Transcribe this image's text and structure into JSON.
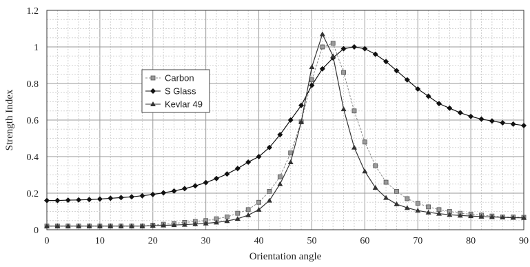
{
  "chart_data": {
    "type": "line",
    "title": "",
    "xlabel": "Orientation angle",
    "ylabel": "Strength Index",
    "xlim": [
      0,
      90
    ],
    "ylim": [
      0,
      1.2
    ],
    "xticks": [
      "0",
      "10",
      "20",
      "30",
      "40",
      "50",
      "60",
      "70",
      "80",
      "90"
    ],
    "yticks": [
      "0",
      "0.2",
      "0.4",
      "0.6",
      "0.8",
      "1",
      "1.2"
    ],
    "grid": true,
    "legend_position": "left-center",
    "series": [
      {
        "name": "Carbon",
        "marker": "square",
        "color": "#888888",
        "x": [
          0,
          2,
          4,
          6,
          8,
          10,
          12,
          14,
          16,
          18,
          20,
          22,
          24,
          26,
          28,
          30,
          32,
          34,
          36,
          38,
          40,
          42,
          44,
          46,
          48,
          50,
          52,
          54,
          56,
          58,
          60,
          62,
          64,
          66,
          68,
          70,
          72,
          74,
          76,
          78,
          80,
          82,
          84,
          86,
          88,
          90
        ],
        "y": [
          0.02,
          0.02,
          0.02,
          0.02,
          0.02,
          0.02,
          0.02,
          0.02,
          0.02,
          0.02,
          0.025,
          0.03,
          0.035,
          0.04,
          0.045,
          0.05,
          0.06,
          0.07,
          0.09,
          0.11,
          0.15,
          0.21,
          0.29,
          0.42,
          0.59,
          0.82,
          1.0,
          1.02,
          0.86,
          0.65,
          0.48,
          0.35,
          0.26,
          0.21,
          0.17,
          0.145,
          0.125,
          0.11,
          0.1,
          0.09,
          0.085,
          0.08,
          0.075,
          0.07,
          0.07,
          0.068
        ]
      },
      {
        "name": "S Glass",
        "marker": "diamond",
        "color": "#111111",
        "x": [
          0,
          2,
          4,
          6,
          8,
          10,
          12,
          14,
          16,
          18,
          20,
          22,
          24,
          26,
          28,
          30,
          32,
          34,
          36,
          38,
          40,
          42,
          44,
          46,
          48,
          50,
          52,
          54,
          56,
          58,
          60,
          62,
          64,
          66,
          68,
          70,
          72,
          74,
          76,
          78,
          80,
          82,
          84,
          86,
          88,
          90
        ],
        "y": [
          0.16,
          0.16,
          0.162,
          0.163,
          0.165,
          0.168,
          0.172,
          0.176,
          0.18,
          0.186,
          0.193,
          0.202,
          0.212,
          0.225,
          0.24,
          0.258,
          0.28,
          0.305,
          0.335,
          0.37,
          0.4,
          0.45,
          0.52,
          0.6,
          0.68,
          0.79,
          0.88,
          0.94,
          0.99,
          1.0,
          0.99,
          0.96,
          0.92,
          0.87,
          0.82,
          0.77,
          0.73,
          0.69,
          0.665,
          0.64,
          0.62,
          0.605,
          0.595,
          0.585,
          0.578,
          0.57
        ]
      },
      {
        "name": "Kevlar 49",
        "marker": "triangle",
        "color": "#333333",
        "x": [
          0,
          2,
          4,
          6,
          8,
          10,
          12,
          14,
          16,
          18,
          20,
          22,
          24,
          26,
          28,
          30,
          32,
          34,
          36,
          38,
          40,
          42,
          44,
          46,
          48,
          50,
          52,
          54,
          56,
          58,
          60,
          62,
          64,
          66,
          68,
          70,
          72,
          74,
          76,
          78,
          80,
          82,
          84,
          86,
          88,
          90
        ],
        "y": [
          0.02,
          0.02,
          0.02,
          0.02,
          0.02,
          0.02,
          0.02,
          0.02,
          0.02,
          0.02,
          0.022,
          0.024,
          0.026,
          0.028,
          0.031,
          0.035,
          0.04,
          0.048,
          0.06,
          0.08,
          0.11,
          0.16,
          0.25,
          0.37,
          0.59,
          0.89,
          1.07,
          0.95,
          0.66,
          0.45,
          0.32,
          0.23,
          0.175,
          0.14,
          0.12,
          0.105,
          0.095,
          0.088,
          0.082,
          0.078,
          0.075,
          0.072,
          0.07,
          0.068,
          0.066,
          0.065
        ]
      }
    ]
  }
}
